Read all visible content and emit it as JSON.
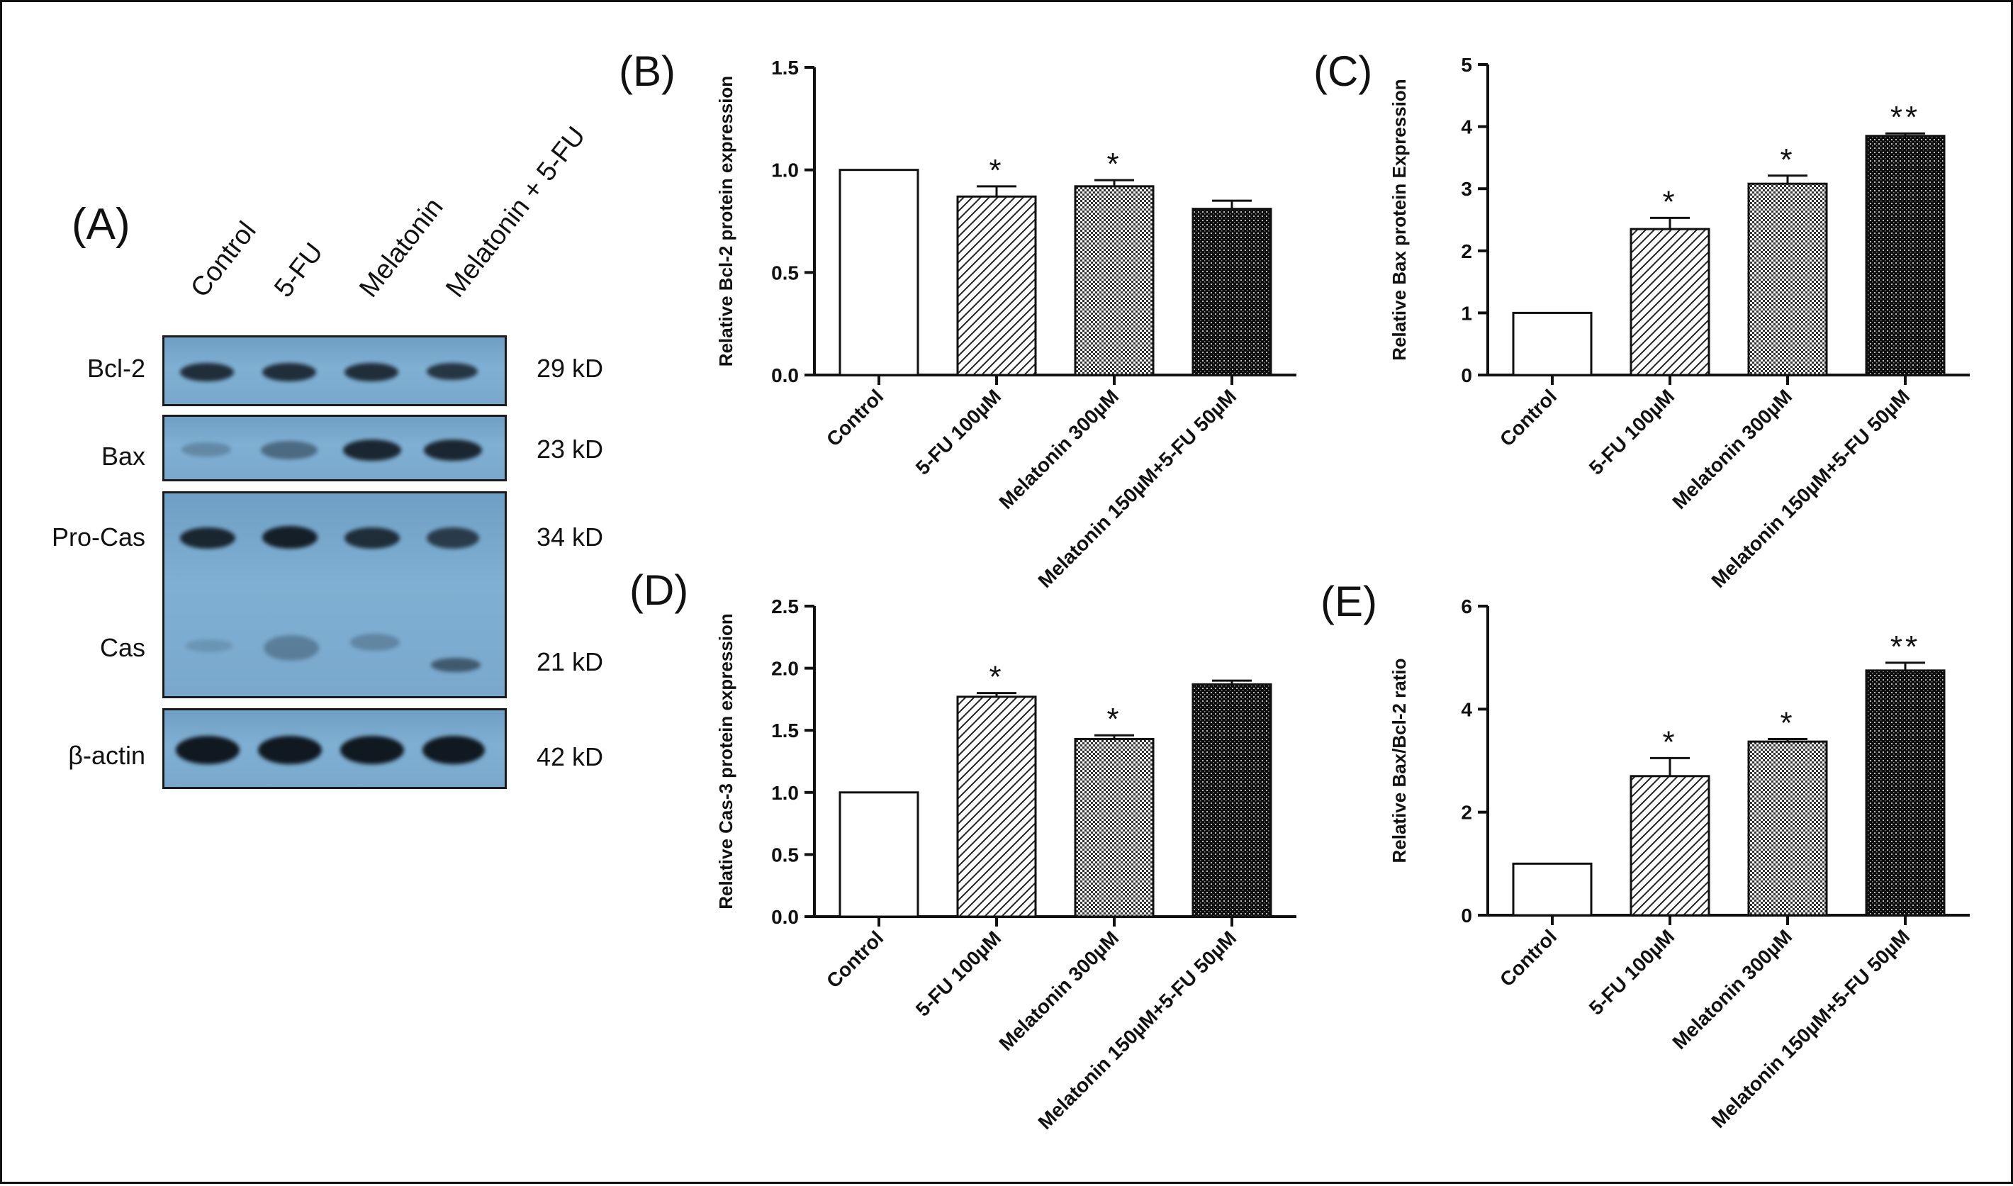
{
  "panel_a": {
    "letter": "(A)",
    "lanes": [
      "Control",
      "5-FU",
      "Melatonin",
      "Melatonin + 5-FU"
    ],
    "proteins": [
      {
        "name": "Bcl-2",
        "kd": "29 kD"
      },
      {
        "name": "Bax",
        "kd": "23 kD"
      },
      {
        "name": "Pro-Cas",
        "kd": "34 kD"
      },
      {
        "name": "Cas",
        "kd": "21 kD"
      },
      {
        "name": "β-actin",
        "kd": "42 kD"
      }
    ],
    "band_intensity": {
      "Bcl-2": [
        0.85,
        0.85,
        0.85,
        0.8
      ],
      "Bax": [
        0.25,
        0.45,
        0.9,
        0.9
      ],
      "Pro-Cas": [
        0.9,
        0.95,
        0.85,
        0.75
      ],
      "Cas": [
        0.15,
        0.3,
        0.25,
        0.55
      ],
      "β-actin": [
        1.0,
        1.0,
        1.0,
        1.0
      ]
    }
  },
  "colors": {
    "axis": "#111111",
    "bar_edge": "#111111",
    "blot_bg": "#7aaad0",
    "band": "#101820"
  },
  "chart_data": [
    {
      "id": "B",
      "type": "bar",
      "letter": "(B)",
      "ylabel": "Relative Bcl-2 protein expression",
      "categories": [
        "Control",
        "5-FU 100µM",
        "Melatonin 300µM",
        "Melatonin 150µM+5-FU 50µM"
      ],
      "values": [
        1.0,
        0.87,
        0.92,
        0.81
      ],
      "errors": [
        0,
        0.05,
        0.03,
        0.04
      ],
      "significance": [
        "",
        "*",
        "*",
        ""
      ],
      "patterns": [
        "none",
        "diagonal",
        "checker",
        "dense"
      ],
      "ylim": [
        0,
        1.5
      ],
      "yticks": [
        "0.0",
        "0.5",
        "1.0",
        "1.5"
      ]
    },
    {
      "id": "C",
      "type": "bar",
      "letter": "(C)",
      "ylabel": "Relative Bax protein Expression",
      "categories": [
        "Control",
        "5-FU 100µM",
        "Melatonin 300µM",
        "Melatonin 150µM+5-FU 50µM"
      ],
      "values": [
        1.0,
        2.35,
        3.08,
        3.85
      ],
      "errors": [
        0,
        0.18,
        0.13,
        0.04
      ],
      "significance": [
        "",
        "*",
        "*",
        "**"
      ],
      "patterns": [
        "none",
        "diagonal",
        "checker",
        "dense"
      ],
      "ylim": [
        0,
        5
      ],
      "yticks": [
        "0",
        "1",
        "2",
        "3",
        "4",
        "5"
      ]
    },
    {
      "id": "D",
      "type": "bar",
      "letter": "(D)",
      "ylabel": "Relative Cas-3 protein expression",
      "categories": [
        "Control",
        "5-FU 100µM",
        "Melatonin 300µM",
        "Melatonin 150µM+5-FU 50µM"
      ],
      "values": [
        1.0,
        1.77,
        1.43,
        1.87
      ],
      "errors": [
        0,
        0.03,
        0.03,
        0.03
      ],
      "significance": [
        "",
        "*",
        "*",
        ""
      ],
      "patterns": [
        "none",
        "diagonal",
        "checker",
        "dense"
      ],
      "ylim": [
        0,
        2.5
      ],
      "yticks": [
        "0.0",
        "0.5",
        "1.0",
        "1.5",
        "2.0",
        "2.5"
      ]
    },
    {
      "id": "E",
      "type": "bar",
      "letter": "(E)",
      "ylabel": "Relative Bax/Bcl-2 ratio",
      "categories": [
        "Control",
        "5-FU 100µM",
        "Melatonin 300µM",
        "Melatonin 150µM+5-FU 50µM"
      ],
      "values": [
        1.0,
        2.7,
        3.37,
        4.75
      ],
      "errors": [
        0,
        0.35,
        0.05,
        0.15
      ],
      "significance": [
        "",
        "*",
        "*",
        "**"
      ],
      "patterns": [
        "none",
        "diagonal",
        "checker",
        "dense"
      ],
      "ylim": [
        0,
        6
      ],
      "yticks": [
        "0",
        "2",
        "4",
        "6"
      ]
    }
  ]
}
